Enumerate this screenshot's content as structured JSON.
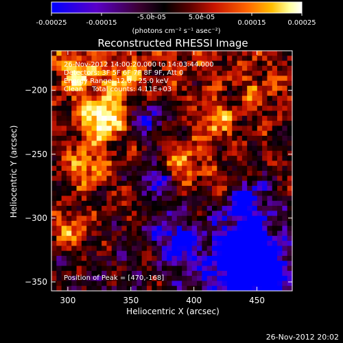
{
  "chart_data": {
    "type": "heatmap",
    "title": "Reconstructed RHESSI Image",
    "xlabel": "Heliocentric X (arcsec)",
    "ylabel": "Heliocentric Y (arcsec)",
    "xlim": [
      287,
      478
    ],
    "ylim": [
      -357,
      -169
    ],
    "x_ticks": [
      300,
      350,
      400,
      450
    ],
    "y_ticks": [
      -200,
      -250,
      -300,
      -350
    ],
    "colorbar": {
      "range": [
        -0.00025,
        0.00025
      ],
      "ticks_bottom": [
        "-0.00025",
        "-0.00015",
        "0.00015",
        "0.00025"
      ],
      "tick_values_bottom": [
        -0.00025,
        -0.00015,
        0.00015,
        0.00025
      ],
      "ticks_top": [
        "-5.0e-05",
        "5.0e-05"
      ],
      "tick_values_top": [
        -5e-05,
        5e-05
      ],
      "unit": "(photons cm⁻² s⁻¹ asec⁻²)"
    },
    "colormap": [
      "#0000ff",
      "#5a00c8",
      "#3c0032",
      "#000000",
      "#5a0000",
      "#c81400",
      "#ff6400",
      "#ffbe00",
      "#ffff9b",
      "#ffffff"
    ],
    "annotations": [
      "26-Nov-2012 14:00:20.000 to 14:03:44.000",
      "Detectors: 3F 5F 6F 7F 8F 9F, Att 0",
      "Energy Range: 12.0 - 25.0 keV",
      "Clean    Total counts: 4.11E+03"
    ],
    "peak_label": "Position of Peak = [470,-168]",
    "grid": false
  },
  "footer": {
    "timestamp": "26-Nov-2012 20:02"
  }
}
